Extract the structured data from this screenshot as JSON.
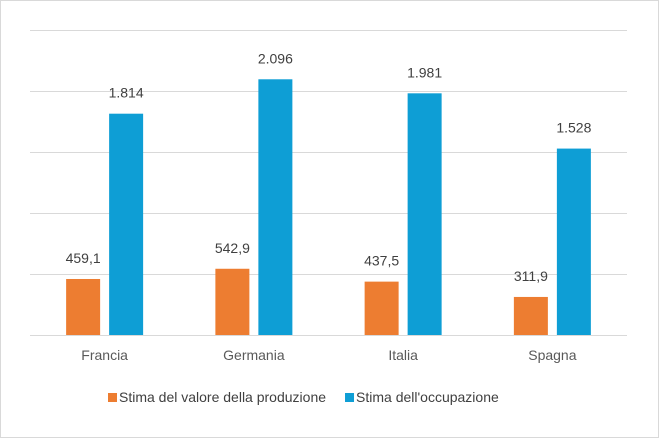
{
  "chart_data": {
    "type": "bar",
    "categories": [
      "Francia",
      "Germania",
      "Italia",
      "Spagna"
    ],
    "series": [
      {
        "name": "Stima del valore della produzione",
        "values": [
          459.1,
          542.9,
          437.5,
          311.9
        ],
        "labels": [
          "459,1",
          "542,9",
          "437,5",
          "311,9"
        ],
        "color": "#ed7d31"
      },
      {
        "name": "Stima dell'occupazione",
        "values": [
          1814,
          2096,
          1981,
          1528
        ],
        "labels": [
          "1.814",
          "2.096",
          "1.981",
          "1.528"
        ],
        "color": "#0e9ed5"
      }
    ],
    "ylim": [
      0,
      2500
    ],
    "gridlines": [
      0,
      500,
      1000,
      1500,
      2000,
      2500
    ],
    "grid": true,
    "gridColor": "#d9d9d9",
    "legend": "bottom"
  }
}
